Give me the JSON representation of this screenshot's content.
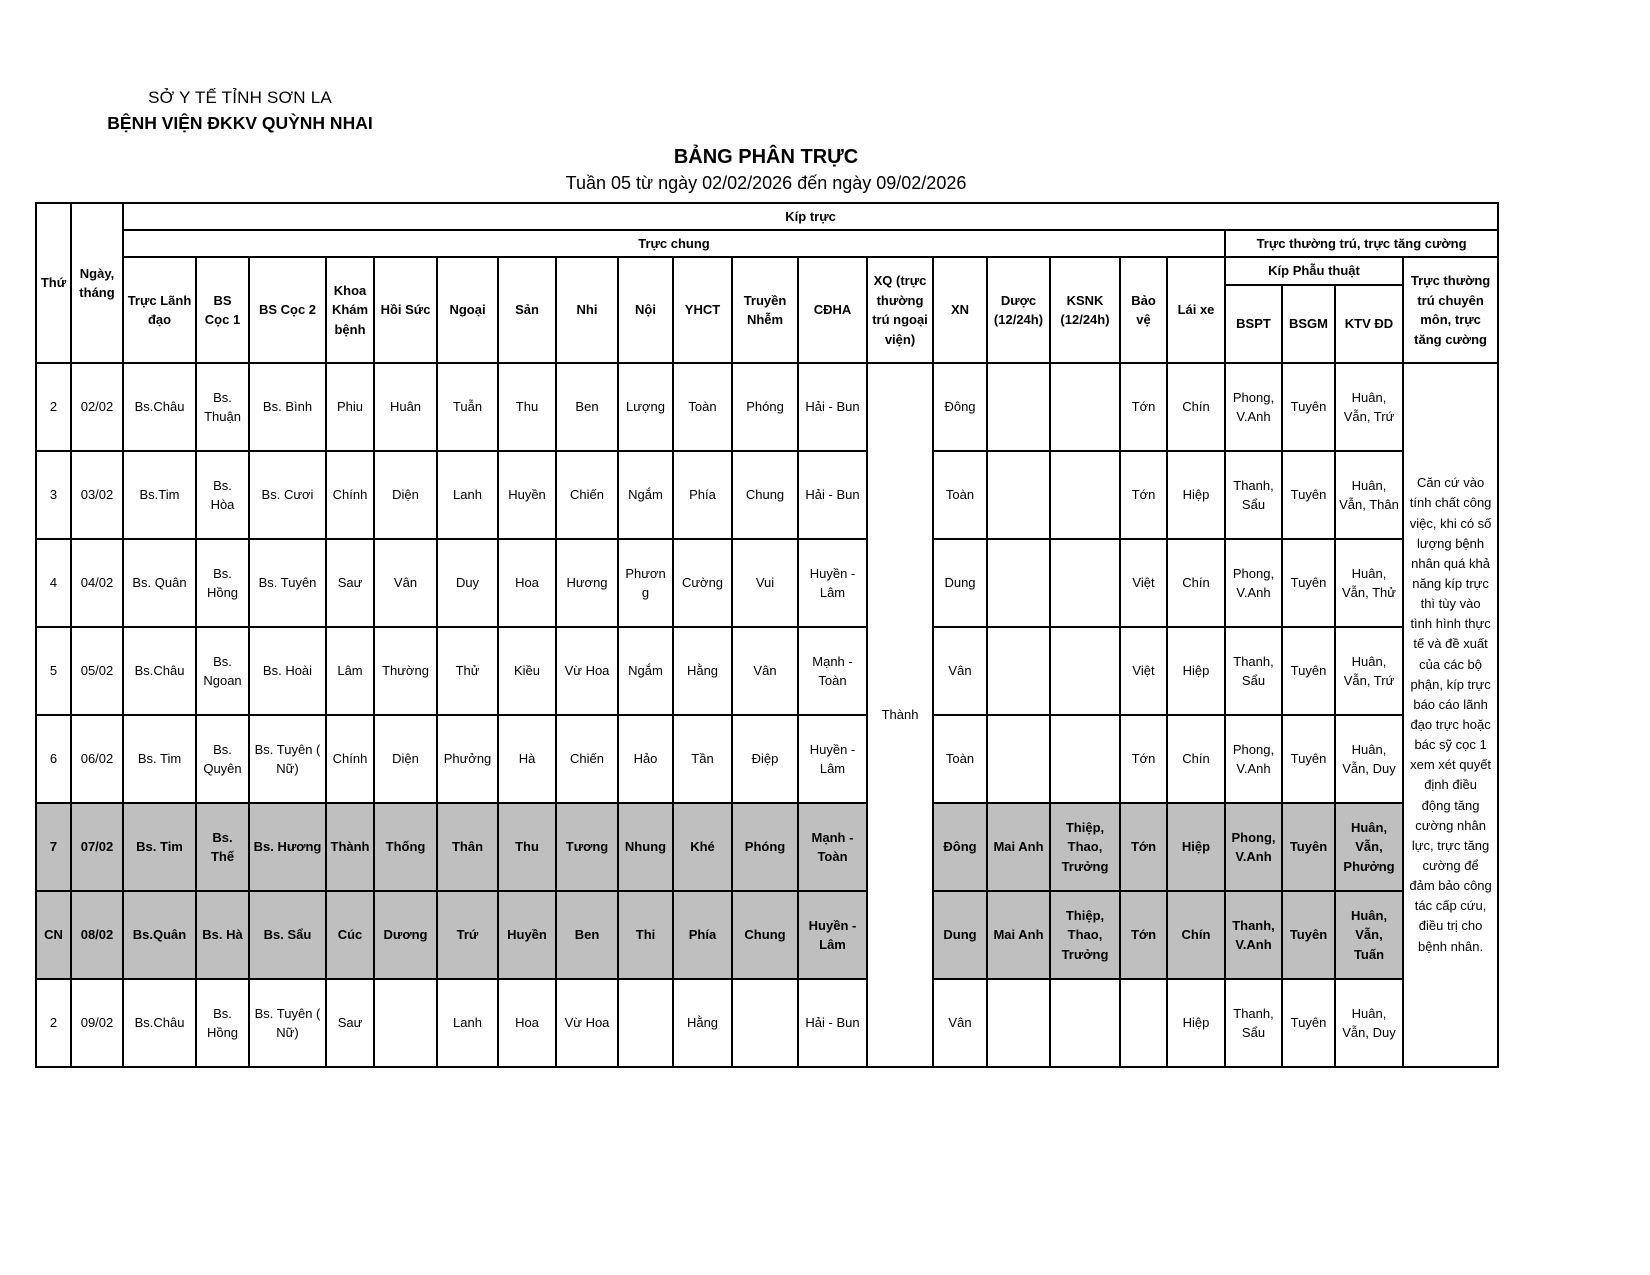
{
  "page": {
    "org_line1": "SỞ Y TẾ TỈNH SƠN LA",
    "org_line2": "BỆNH VIỆN ĐKKV QUỲNH NHAI",
    "title": "BẢNG PHÂN TRỰC",
    "subtitle": "Tuần 05 từ ngày 02/02/2026 đến ngày 09/02/2026"
  },
  "colors": {
    "highlight_bg": "#bfbfbf",
    "border": "#000000"
  },
  "table": {
    "headers": {
      "thu": "Thứ",
      "ngay_thang": "Ngày, tháng",
      "kip_truc": "Kíp trực",
      "truc_chung": "Trực chung",
      "truc_thuong_tru": "Trực thường trú, trực tăng cường",
      "kip_phau_thuat": "Kíp Phẫu thuật",
      "columns": [
        "Trực Lãnh đạo",
        "BS Cọc 1",
        "BS Cọc 2",
        "Khoa Khám bệnh",
        "Hồi Sức",
        "Ngoại",
        "Sản",
        "Nhi",
        "Nội",
        "YHCT",
        "Truyền Nhễm",
        "CĐHA",
        "XQ (trực thường trú ngoại viện)",
        "XN",
        "Dược (12/24h)",
        "KSNK (12/24h)",
        "Bảo vệ",
        "Lái xe"
      ],
      "surgery_columns": [
        "BSPT",
        "BSGM",
        "KTV ĐD"
      ],
      "last_column": "Trực thường trú chuyên môn, trực tăng cường"
    },
    "xq_value": "Thành",
    "note": "Căn cứ vào tính chất công việc, khi có số lượng bệnh nhân quá khả năng kíp trực thì tùy vào tình hình thực tế và đề xuất của các bộ phận, kíp trực báo cáo lãnh đạo trực hoặc bác sỹ cọc 1 xem xét quyết định điều động tăng cường nhân lực, trực tăng cường để đảm bảo công tác cấp cứu, điều trị cho bệnh nhân.",
    "rows": [
      {
        "thu": "2",
        "ngay": "02/02",
        "lanh_dao": "Bs.Châu",
        "coc1": "Bs. Thuận",
        "coc2": "Bs. Bình",
        "kham_benh": "Phiu",
        "hoi_suc": "Huân",
        "ngoai": "Tuẫn",
        "san": "Thu",
        "nhi": "Ben",
        "noi": "Lượng",
        "yhct": "Toàn",
        "truyen_nhiem": "Phóng",
        "cdha": "Hải - Bun",
        "xn": "Đông",
        "duoc": "",
        "ksnk": "",
        "bao_ve": "Tớn",
        "lai_xe": "Chín",
        "bspt": "Phong, V.Anh",
        "bsgm": "Tuyên",
        "ktv_dd": "Huân, Vẫn, Trứ",
        "highlight": false
      },
      {
        "thu": "3",
        "ngay": "03/02",
        "lanh_dao": "Bs.Tim",
        "coc1": "Bs. Hòa",
        "coc2": "Bs. Cươi",
        "kham_benh": "Chính",
        "hoi_suc": "Diện",
        "ngoai": "Lanh",
        "san": "Huyền",
        "nhi": "Chiến",
        "noi": "Ngắm",
        "yhct": "Phía",
        "truyen_nhiem": "Chung",
        "cdha": "Hải - Bun",
        "xn": "Toàn",
        "duoc": "",
        "ksnk": "",
        "bao_ve": "Tớn",
        "lai_xe": "Hiệp",
        "bspt": "Thanh, Sẩu",
        "bsgm": "Tuyên",
        "ktv_dd": "Huân, Vẫn, Thân",
        "highlight": false
      },
      {
        "thu": "4",
        "ngay": "04/02",
        "lanh_dao": "Bs. Quân",
        "coc1": "Bs. Hồng",
        "coc2": "Bs. Tuyên",
        "kham_benh": "Saư",
        "hoi_suc": "Vân",
        "ngoai": "Duy",
        "san": "Hoa",
        "nhi": "Hương",
        "noi": "Phương",
        "yhct": "Cường",
        "truyen_nhiem": "Vui",
        "cdha": "Huyền - Lâm",
        "xn": "Dung",
        "duoc": "",
        "ksnk": "",
        "bao_ve": "Việt",
        "lai_xe": "Chín",
        "bspt": "Phong, V.Anh",
        "bsgm": "Tuyên",
        "ktv_dd": "Huân, Vẫn, Thử",
        "highlight": false
      },
      {
        "thu": "5",
        "ngay": "05/02",
        "lanh_dao": "Bs.Châu",
        "coc1": "Bs. Ngoan",
        "coc2": "Bs. Hoài",
        "kham_benh": "Lâm",
        "hoi_suc": "Thường",
        "ngoai": "Thử",
        "san": "Kiều",
        "nhi": "Vừ Hoa",
        "noi": "Ngắm",
        "yhct": "Hằng",
        "truyen_nhiem": "Vân",
        "cdha": "Mạnh - Toàn",
        "xn": "Vân",
        "duoc": "",
        "ksnk": "",
        "bao_ve": "Việt",
        "lai_xe": "Hiệp",
        "bspt": "Thanh, Sẩu",
        "bsgm": "Tuyên",
        "ktv_dd": "Huân, Vẫn, Trứ",
        "highlight": false
      },
      {
        "thu": "6",
        "ngay": "06/02",
        "lanh_dao": "Bs. Tim",
        "coc1": "Bs. Quyên",
        "coc2": "Bs. Tuyên ( Nữ)",
        "kham_benh": "Chính",
        "hoi_suc": "Diện",
        "ngoai": "Phưởng",
        "san": "Hà",
        "nhi": "Chiến",
        "noi": "Hảo",
        "yhct": "Tần",
        "truyen_nhiem": "Điệp",
        "cdha": "Huyền - Lâm",
        "xn": "Toàn",
        "duoc": "",
        "ksnk": "",
        "bao_ve": "Tớn",
        "lai_xe": "Chín",
        "bspt": "Phong, V.Anh",
        "bsgm": "Tuyên",
        "ktv_dd": "Huân, Vẫn, Duy",
        "highlight": false
      },
      {
        "thu": "7",
        "ngay": "07/02",
        "lanh_dao": "Bs. Tim",
        "coc1": "Bs. Thế",
        "coc2": "Bs. Hương",
        "kham_benh": "Thành",
        "hoi_suc": "Thống",
        "ngoai": "Thân",
        "san": "Thu",
        "nhi": "Tương",
        "noi": "Nhung",
        "yhct": "Khé",
        "truyen_nhiem": "Phóng",
        "cdha": "Mạnh - Toàn",
        "xn": "Đông",
        "duoc": "Mai Anh",
        "ksnk": "Thiệp, Thao, Trưởng",
        "bao_ve": "Tớn",
        "lai_xe": "Hiệp",
        "bspt": "Phong, V.Anh",
        "bsgm": "Tuyên",
        "ktv_dd": "Huân, Vẫn, Phưởng",
        "highlight": true
      },
      {
        "thu": "CN",
        "ngay": "08/02",
        "lanh_dao": "Bs.Quân",
        "coc1": "Bs. Hà",
        "coc2": "Bs. Sẩu",
        "kham_benh": "Cúc",
        "hoi_suc": "Dương",
        "ngoai": "Trứ",
        "san": "Huyền",
        "nhi": "Ben",
        "noi": "Thi",
        "yhct": "Phía",
        "truyen_nhiem": "Chung",
        "cdha": "Huyền - Lâm",
        "xn": "Dung",
        "duoc": "Mai Anh",
        "ksnk": "Thiệp, Thao, Trưởng",
        "bao_ve": "Tớn",
        "lai_xe": "Chín",
        "bspt": "Thanh, V.Anh",
        "bsgm": "Tuyên",
        "ktv_dd": "Huân, Vẫn, Tuấn",
        "highlight": true
      },
      {
        "thu": "2",
        "ngay": "09/02",
        "lanh_dao": "Bs.Châu",
        "coc1": "Bs. Hồng",
        "coc2": "Bs. Tuyên ( Nữ)",
        "kham_benh": "Saư",
        "hoi_suc": "",
        "ngoai": "Lanh",
        "san": "Hoa",
        "nhi": "Vừ Hoa",
        "noi": "",
        "yhct": "Hằng",
        "truyen_nhiem": "",
        "cdha": "Hải - Bun",
        "xn": "Vân",
        "duoc": "",
        "ksnk": "",
        "bao_ve": "",
        "lai_xe": "Hiệp",
        "bspt": "Thanh, Sẩu",
        "bsgm": "Tuyên",
        "ktv_dd": "Huân, Vẫn, Duy",
        "highlight": false
      }
    ]
  }
}
